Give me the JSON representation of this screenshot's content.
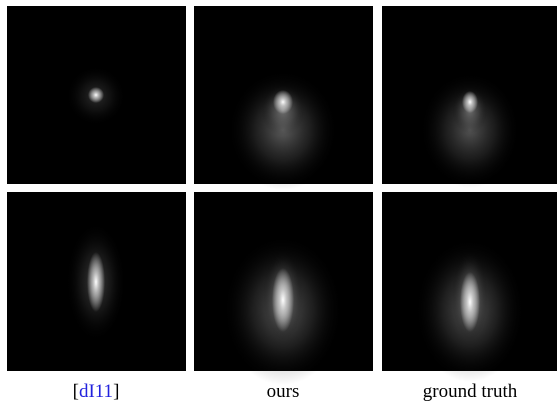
{
  "captions": [
    {
      "open": "[",
      "citation": "dI11",
      "close": "]"
    },
    {
      "text": "ours"
    },
    {
      "text": "ground truth"
    }
  ]
}
